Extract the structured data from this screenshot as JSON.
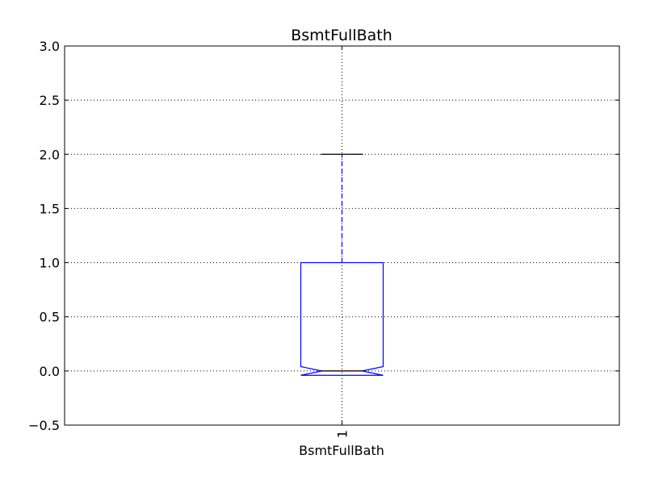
{
  "chart_data": {
    "type": "box",
    "title": "BsmtFullBath",
    "xlabel": "BsmtFullBath",
    "ylabel": "",
    "categories": [
      "1"
    ],
    "series": [
      {
        "stats": {
          "whislo": 0.0,
          "q1": 0.0,
          "median": 0.0,
          "q3": 1.0,
          "whishi": 2.0,
          "notch_low": -0.04,
          "notch_high": 0.04
        }
      }
    ],
    "ylim": [
      -0.5,
      3.0
    ],
    "yticks": [
      -0.5,
      0.0,
      0.5,
      1.0,
      1.5,
      2.0,
      2.5,
      3.0
    ],
    "ytick_labels": [
      "−0.5",
      "0.0",
      "0.5",
      "1.0",
      "1.5",
      "2.0",
      "2.5",
      "3.0"
    ],
    "grid": true,
    "colors": {
      "box": "#0000ff",
      "median": "#ff0000",
      "cap": "#000000",
      "whisker": "#0000ff",
      "grid": "#000000"
    }
  }
}
